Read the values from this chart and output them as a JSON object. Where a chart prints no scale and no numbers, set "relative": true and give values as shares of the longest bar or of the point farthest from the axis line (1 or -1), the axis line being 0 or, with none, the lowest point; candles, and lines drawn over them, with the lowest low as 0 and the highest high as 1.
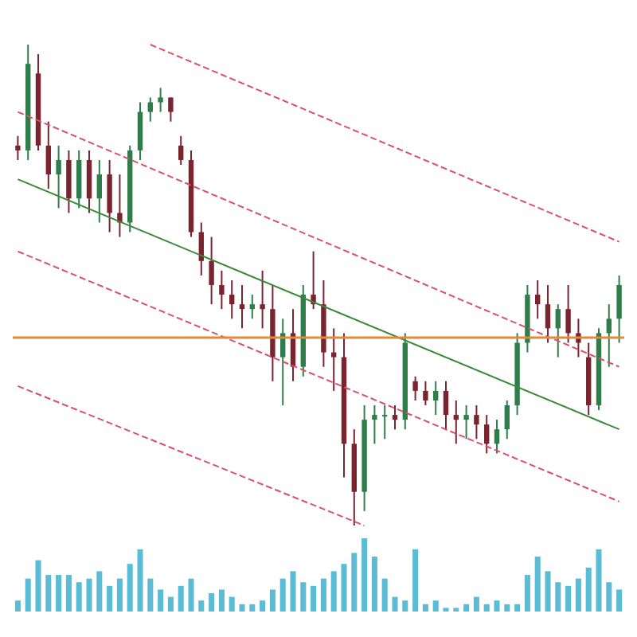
{
  "chart_data": [
    {
      "type": "candlestick",
      "relative": true,
      "colors": [
        "#7a2430",
        "#2f7d4a",
        "#7a2430",
        "#7a2430",
        "#2f7d4a",
        "#7a2430",
        "#2f7d4a",
        "#7a2430",
        "#2f7d4a",
        "#7a2430",
        "#7a2430",
        "#2f7d4a",
        "#2f7d4a",
        "#2f7d4a",
        "#2f7d4a",
        "#7a2430",
        "#7a2430",
        "#7a2430",
        "#7a2430",
        "#7a2430",
        "#7a2430",
        "#7a2430",
        "#7a2430",
        "#2f7d4a",
        "#7a2430",
        "#7a2430",
        "#2f7d4a",
        "#7a2430",
        "#2f7d4a",
        "#7a2430",
        "#7a2430",
        "#7a2430",
        "#7a2430",
        "#7a2430",
        "#2f7d4a",
        "#2f7d4a",
        "#2f7d4a",
        "#7a2430",
        "#2f7d4a",
        "#7a2430",
        "#7a2430",
        "#2f7d4a",
        "#7a2430",
        "#7a2430",
        "#2f7d4a",
        "#7a2430",
        "#7a2430",
        "#2f7d4a",
        "#2f7d4a",
        "#2f7d4a",
        "#2f7d4a",
        "#7a2430",
        "#7a2430",
        "#2f7d4a",
        "#7a2430",
        "#7a2430",
        "#7a2430",
        "#2f7d4a",
        "#2f7d4a",
        "#2f7d4a"
      ],
      "categories": [
        null,
        null,
        null,
        null,
        null,
        null,
        null,
        null,
        null,
        null,
        null,
        null,
        null,
        null,
        null,
        null,
        null,
        null,
        null,
        null,
        null,
        null,
        null,
        null,
        null,
        null,
        null,
        null,
        null,
        null,
        null,
        null,
        null,
        null,
        null,
        null,
        null,
        null,
        null,
        null,
        null,
        null,
        null,
        null,
        null,
        null,
        null,
        null,
        null,
        null,
        null,
        null,
        null,
        null,
        null,
        null,
        null,
        null,
        null,
        null
      ],
      "ohlc": [
        [
          0.79,
          0.81,
          0.76,
          0.78
        ],
        [
          0.78,
          1.0,
          0.76,
          0.96
        ],
        [
          0.94,
          0.98,
          0.78,
          0.79
        ],
        [
          0.79,
          0.84,
          0.7,
          0.73
        ],
        [
          0.73,
          0.79,
          0.66,
          0.76
        ],
        [
          0.76,
          0.78,
          0.65,
          0.68
        ],
        [
          0.68,
          0.78,
          0.66,
          0.76
        ],
        [
          0.76,
          0.78,
          0.65,
          0.68
        ],
        [
          0.68,
          0.76,
          0.63,
          0.73
        ],
        [
          0.73,
          0.76,
          0.61,
          0.65
        ],
        [
          0.65,
          0.73,
          0.6,
          0.63
        ],
        [
          0.63,
          0.79,
          0.61,
          0.78
        ],
        [
          0.78,
          0.88,
          0.76,
          0.86
        ],
        [
          0.86,
          0.89,
          0.84,
          0.88
        ],
        [
          0.88,
          0.91,
          0.86,
          0.89
        ],
        [
          0.89,
          0.89,
          0.84,
          0.86
        ],
        [
          0.79,
          0.81,
          0.75,
          0.76
        ],
        [
          0.76,
          0.78,
          0.6,
          0.61
        ],
        [
          0.61,
          0.63,
          0.52,
          0.55
        ],
        [
          0.55,
          0.6,
          0.46,
          0.5
        ],
        [
          0.5,
          0.53,
          0.45,
          0.48
        ],
        [
          0.48,
          0.51,
          0.43,
          0.46
        ],
        [
          0.46,
          0.5,
          0.41,
          0.45
        ],
        [
          0.45,
          0.48,
          0.43,
          0.46
        ],
        [
          0.46,
          0.53,
          0.41,
          0.45
        ],
        [
          0.45,
          0.5,
          0.3,
          0.35
        ],
        [
          0.35,
          0.43,
          0.25,
          0.4
        ],
        [
          0.4,
          0.45,
          0.3,
          0.33
        ],
        [
          0.33,
          0.5,
          0.31,
          0.48
        ],
        [
          0.48,
          0.57,
          0.45,
          0.46
        ],
        [
          0.46,
          0.51,
          0.33,
          0.36
        ],
        [
          0.36,
          0.41,
          0.28,
          0.35
        ],
        [
          0.35,
          0.4,
          0.1,
          0.17
        ],
        [
          0.17,
          0.2,
          0,
          0.07
        ],
        [
          0.07,
          0.25,
          0.03,
          0.22
        ],
        [
          0.22,
          0.25,
          0.17,
          0.23
        ],
        [
          0.23,
          0.25,
          0.18,
          0.23
        ],
        [
          0.23,
          0.25,
          0.2,
          0.22
        ],
        [
          0.22,
          0.4,
          0.2,
          0.38
        ],
        [
          0.3,
          0.31,
          0.26,
          0.28
        ],
        [
          0.28,
          0.3,
          0.25,
          0.26
        ],
        [
          0.26,
          0.3,
          0.23,
          0.28
        ],
        [
          0.28,
          0.3,
          0.2,
          0.23
        ],
        [
          0.23,
          0.26,
          0.17,
          0.22
        ],
        [
          0.22,
          0.25,
          0.18,
          0.23
        ],
        [
          0.23,
          0.25,
          0.18,
          0.21
        ],
        [
          0.21,
          0.23,
          0.15,
          0.17
        ],
        [
          0.17,
          0.22,
          0.15,
          0.2
        ],
        [
          0.2,
          0.26,
          0.18,
          0.25
        ],
        [
          0.25,
          0.4,
          0.23,
          0.38
        ],
        [
          0.38,
          0.5,
          0.36,
          0.48
        ],
        [
          0.48,
          0.51,
          0.43,
          0.46
        ],
        [
          0.46,
          0.5,
          0.38,
          0.41
        ],
        [
          0.41,
          0.46,
          0.35,
          0.45
        ],
        [
          0.45,
          0.5,
          0.38,
          0.4
        ],
        [
          0.4,
          0.43,
          0.35,
          0.38
        ],
        [
          0.35,
          0.38,
          0.23,
          0.25
        ],
        [
          0.25,
          0.41,
          0.24,
          0.4
        ],
        [
          0.4,
          0.46,
          0.33,
          0.43
        ],
        [
          0.43,
          0.52,
          0.38,
          0.5
        ]
      ],
      "grid": false
    },
    {
      "type": "line",
      "relative": true,
      "ref_lines": [
        {
          "axis": "y",
          "value": 0.39,
          "color": "#e08a3c"
        }
      ],
      "categories": [
        null,
        null,
        null,
        null,
        null,
        null,
        null,
        null,
        null,
        null,
        null,
        null,
        null,
        null,
        null,
        null,
        null,
        null,
        null,
        null,
        null,
        null,
        null,
        null,
        null,
        null,
        null,
        null,
        null,
        null,
        null,
        null,
        null,
        null,
        null,
        null,
        null,
        null,
        null,
        null,
        null,
        null,
        null,
        null,
        null,
        null,
        null,
        null,
        null,
        null,
        null,
        null,
        null,
        null,
        null,
        null,
        null,
        null,
        null,
        null
      ],
      "series": [
        {
          "type": "line",
          "color": "#3a8a3a",
          "line_style": "solid",
          "values": [
            0.72,
            null,
            null,
            null,
            null,
            null,
            null,
            null,
            null,
            null,
            null,
            null,
            null,
            null,
            null,
            null,
            null,
            null,
            null,
            null,
            null,
            null,
            null,
            null,
            null,
            null,
            null,
            null,
            null,
            null,
            null,
            null,
            null,
            null,
            null,
            null,
            null,
            null,
            null,
            null,
            null,
            null,
            null,
            null,
            null,
            null,
            null,
            null,
            null,
            null,
            null,
            null,
            null,
            null,
            null,
            null,
            null,
            null,
            null,
            0.2
          ]
        },
        {
          "type": "line",
          "color": "#d9506a",
          "line_style": "dashed",
          "values": [
            null,
            null,
            null,
            null,
            null,
            null,
            null,
            null,
            null,
            null,
            null,
            null,
            null,
            1.0,
            null,
            null,
            null,
            null,
            null,
            null,
            null,
            null,
            null,
            null,
            null,
            null,
            null,
            null,
            null,
            null,
            null,
            null,
            null,
            null,
            null,
            null,
            null,
            null,
            null,
            null,
            null,
            null,
            null,
            null,
            null,
            null,
            null,
            null,
            null,
            null,
            null,
            null,
            null,
            null,
            null,
            null,
            null,
            null,
            null,
            0.59
          ]
        },
        {
          "type": "line",
          "color": "#d9506a",
          "line_style": "dashed",
          "values": [
            0.86,
            null,
            null,
            null,
            null,
            null,
            null,
            null,
            null,
            null,
            null,
            null,
            null,
            null,
            null,
            null,
            null,
            null,
            null,
            null,
            null,
            null,
            null,
            null,
            null,
            null,
            null,
            null,
            null,
            null,
            null,
            null,
            null,
            null,
            null,
            null,
            null,
            null,
            null,
            null,
            null,
            null,
            null,
            null,
            null,
            null,
            null,
            null,
            null,
            null,
            null,
            null,
            null,
            null,
            null,
            null,
            null,
            null,
            null,
            0.33
          ]
        },
        {
          "type": "line",
          "color": "#d9506a",
          "line_style": "dashed",
          "values": [
            0.57,
            null,
            null,
            null,
            null,
            null,
            null,
            null,
            null,
            null,
            null,
            null,
            null,
            null,
            null,
            null,
            null,
            null,
            null,
            null,
            null,
            null,
            null,
            null,
            null,
            null,
            null,
            null,
            null,
            null,
            null,
            null,
            null,
            null,
            null,
            null,
            null,
            null,
            null,
            null,
            null,
            null,
            null,
            null,
            null,
            null,
            null,
            null,
            null,
            null,
            null,
            null,
            null,
            null,
            null,
            null,
            null,
            null,
            null,
            0.05
          ]
        },
        {
          "type": "line",
          "color": "#d9506a",
          "line_style": "dashed",
          "values": [
            0.29,
            null,
            null,
            null,
            null,
            null,
            null,
            null,
            null,
            null,
            null,
            null,
            null,
            null,
            null,
            null,
            null,
            null,
            null,
            null,
            null,
            null,
            null,
            null,
            null,
            null,
            null,
            null,
            null,
            null,
            null,
            null,
            null,
            null,
            0,
            null,
            null,
            null,
            null,
            null,
            null,
            null,
            null,
            null,
            null,
            null,
            null,
            null,
            null,
            null,
            null,
            null,
            null,
            null,
            null,
            null,
            null,
            null,
            null,
            null
          ]
        }
      ]
    },
    {
      "type": "bar",
      "relative": true,
      "color": "#5bbcd6",
      "categories": [
        null,
        null,
        null,
        null,
        null,
        null,
        null,
        null,
        null,
        null,
        null,
        null,
        null,
        null,
        null,
        null,
        null,
        null,
        null,
        null,
        null,
        null,
        null,
        null,
        null,
        null,
        null,
        null,
        null,
        null,
        null,
        null,
        null,
        null,
        null,
        null,
        null,
        null,
        null,
        null,
        null,
        null,
        null,
        null,
        null,
        null,
        null,
        null,
        null,
        null,
        null,
        null,
        null,
        null,
        null,
        null,
        null,
        null,
        null,
        null
      ],
      "values": [
        0.15,
        0.45,
        0.7,
        0.5,
        0.5,
        0.5,
        0.4,
        0.45,
        0.55,
        0.35,
        0.45,
        0.65,
        0.85,
        0.45,
        0.3,
        0.2,
        0.35,
        0.45,
        0.15,
        0.25,
        0.3,
        0.2,
        0.1,
        0.1,
        0.15,
        0.3,
        0.45,
        0.55,
        0.4,
        0.35,
        0.45,
        0.55,
        0.65,
        0.8,
        1.0,
        0.75,
        0.45,
        0.2,
        0.15,
        0.85,
        0.1,
        0.15,
        0.05,
        0.05,
        0.1,
        0.2,
        0.1,
        0.15,
        0.1,
        0.1,
        0.5,
        0.75,
        0.55,
        0.4,
        0.35,
        0.45,
        0.6,
        0.85,
        0.4,
        0.3
      ]
    }
  ]
}
